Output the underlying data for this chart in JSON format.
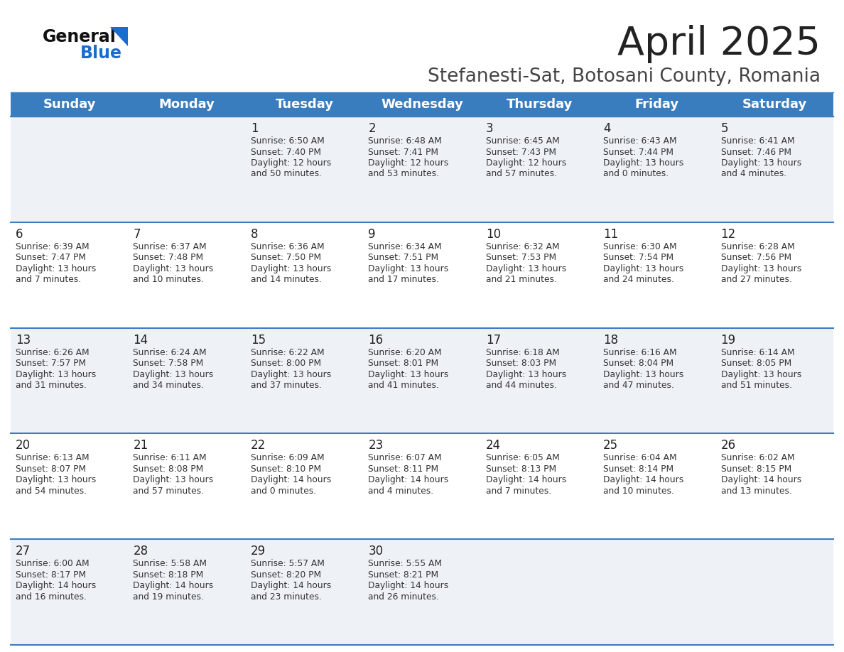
{
  "title": "April 2025",
  "subtitle": "Stefanesti-Sat, Botosani County, Romania",
  "days_of_week": [
    "Sunday",
    "Monday",
    "Tuesday",
    "Wednesday",
    "Thursday",
    "Friday",
    "Saturday"
  ],
  "header_bg": "#3a7dbf",
  "header_text": "#ffffff",
  "row_bg_odd": "#eef2f7",
  "row_bg_even": "#ffffff",
  "border_color": "#3a7dbf",
  "day_number_color": "#222222",
  "cell_text_color": "#333333",
  "title_color": "#222222",
  "subtitle_color": "#444444",
  "logo_general_color": "#111111",
  "logo_blue_color": "#1a6dcc",
  "weeks": [
    [
      {
        "day": null,
        "info": null
      },
      {
        "day": null,
        "info": null
      },
      {
        "day": 1,
        "info": "Sunrise: 6:50 AM\nSunset: 7:40 PM\nDaylight: 12 hours\nand 50 minutes."
      },
      {
        "day": 2,
        "info": "Sunrise: 6:48 AM\nSunset: 7:41 PM\nDaylight: 12 hours\nand 53 minutes."
      },
      {
        "day": 3,
        "info": "Sunrise: 6:45 AM\nSunset: 7:43 PM\nDaylight: 12 hours\nand 57 minutes."
      },
      {
        "day": 4,
        "info": "Sunrise: 6:43 AM\nSunset: 7:44 PM\nDaylight: 13 hours\nand 0 minutes."
      },
      {
        "day": 5,
        "info": "Sunrise: 6:41 AM\nSunset: 7:46 PM\nDaylight: 13 hours\nand 4 minutes."
      }
    ],
    [
      {
        "day": 6,
        "info": "Sunrise: 6:39 AM\nSunset: 7:47 PM\nDaylight: 13 hours\nand 7 minutes."
      },
      {
        "day": 7,
        "info": "Sunrise: 6:37 AM\nSunset: 7:48 PM\nDaylight: 13 hours\nand 10 minutes."
      },
      {
        "day": 8,
        "info": "Sunrise: 6:36 AM\nSunset: 7:50 PM\nDaylight: 13 hours\nand 14 minutes."
      },
      {
        "day": 9,
        "info": "Sunrise: 6:34 AM\nSunset: 7:51 PM\nDaylight: 13 hours\nand 17 minutes."
      },
      {
        "day": 10,
        "info": "Sunrise: 6:32 AM\nSunset: 7:53 PM\nDaylight: 13 hours\nand 21 minutes."
      },
      {
        "day": 11,
        "info": "Sunrise: 6:30 AM\nSunset: 7:54 PM\nDaylight: 13 hours\nand 24 minutes."
      },
      {
        "day": 12,
        "info": "Sunrise: 6:28 AM\nSunset: 7:56 PM\nDaylight: 13 hours\nand 27 minutes."
      }
    ],
    [
      {
        "day": 13,
        "info": "Sunrise: 6:26 AM\nSunset: 7:57 PM\nDaylight: 13 hours\nand 31 minutes."
      },
      {
        "day": 14,
        "info": "Sunrise: 6:24 AM\nSunset: 7:58 PM\nDaylight: 13 hours\nand 34 minutes."
      },
      {
        "day": 15,
        "info": "Sunrise: 6:22 AM\nSunset: 8:00 PM\nDaylight: 13 hours\nand 37 minutes."
      },
      {
        "day": 16,
        "info": "Sunrise: 6:20 AM\nSunset: 8:01 PM\nDaylight: 13 hours\nand 41 minutes."
      },
      {
        "day": 17,
        "info": "Sunrise: 6:18 AM\nSunset: 8:03 PM\nDaylight: 13 hours\nand 44 minutes."
      },
      {
        "day": 18,
        "info": "Sunrise: 6:16 AM\nSunset: 8:04 PM\nDaylight: 13 hours\nand 47 minutes."
      },
      {
        "day": 19,
        "info": "Sunrise: 6:14 AM\nSunset: 8:05 PM\nDaylight: 13 hours\nand 51 minutes."
      }
    ],
    [
      {
        "day": 20,
        "info": "Sunrise: 6:13 AM\nSunset: 8:07 PM\nDaylight: 13 hours\nand 54 minutes."
      },
      {
        "day": 21,
        "info": "Sunrise: 6:11 AM\nSunset: 8:08 PM\nDaylight: 13 hours\nand 57 minutes."
      },
      {
        "day": 22,
        "info": "Sunrise: 6:09 AM\nSunset: 8:10 PM\nDaylight: 14 hours\nand 0 minutes."
      },
      {
        "day": 23,
        "info": "Sunrise: 6:07 AM\nSunset: 8:11 PM\nDaylight: 14 hours\nand 4 minutes."
      },
      {
        "day": 24,
        "info": "Sunrise: 6:05 AM\nSunset: 8:13 PM\nDaylight: 14 hours\nand 7 minutes."
      },
      {
        "day": 25,
        "info": "Sunrise: 6:04 AM\nSunset: 8:14 PM\nDaylight: 14 hours\nand 10 minutes."
      },
      {
        "day": 26,
        "info": "Sunrise: 6:02 AM\nSunset: 8:15 PM\nDaylight: 14 hours\nand 13 minutes."
      }
    ],
    [
      {
        "day": 27,
        "info": "Sunrise: 6:00 AM\nSunset: 8:17 PM\nDaylight: 14 hours\nand 16 minutes."
      },
      {
        "day": 28,
        "info": "Sunrise: 5:58 AM\nSunset: 8:18 PM\nDaylight: 14 hours\nand 19 minutes."
      },
      {
        "day": 29,
        "info": "Sunrise: 5:57 AM\nSunset: 8:20 PM\nDaylight: 14 hours\nand 23 minutes."
      },
      {
        "day": 30,
        "info": "Sunrise: 5:55 AM\nSunset: 8:21 PM\nDaylight: 14 hours\nand 26 minutes."
      },
      {
        "day": null,
        "info": null
      },
      {
        "day": null,
        "info": null
      },
      {
        "day": null,
        "info": null
      }
    ]
  ]
}
